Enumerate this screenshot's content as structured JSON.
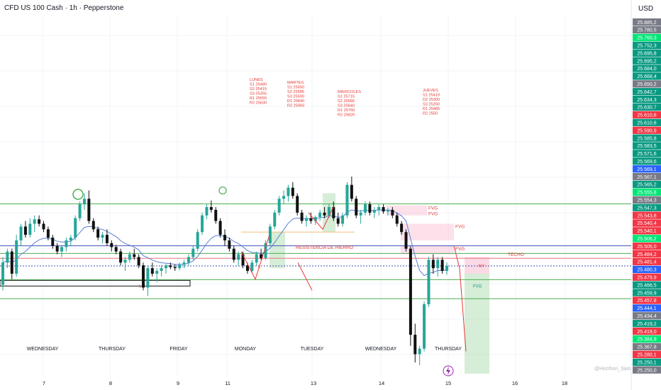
{
  "header": {
    "title": "CFD US 100 Cash · 1h · Pepperstone",
    "currency": "USD",
    "watermark": "@Hezthon_Sam"
  },
  "colors": {
    "up": "#26a69a",
    "down": "#111111",
    "ema": "#5b7fd6",
    "green_line": "#4caf50",
    "red_line": "#e5757a",
    "blue_line": "#3f51b5",
    "annotation": "#e53935"
  },
  "chart_data": {
    "type": "candlestick",
    "instrument": "CFD US 100 Cash",
    "timeframe": "1h",
    "broker": "Pepperstone",
    "ylim": [
      25246,
      25895
    ],
    "day_labels": [
      "WEDNESDAY",
      "THURSDAY",
      "FRIDAY",
      "MONDAY",
      "TUESDAY",
      "WEDNESDAY",
      "THURSDAY"
    ],
    "date_labels": [
      "7",
      "8",
      "9",
      "11",
      "13",
      "14",
      "15",
      "16",
      "18"
    ],
    "price_ticks": [
      {
        "label": "25.885,2",
        "value": 25885.2,
        "bg": "#787b86"
      },
      {
        "label": "25.780,5",
        "value": 25780.5,
        "bg": "#787b86"
      },
      {
        "label": "25.760,3",
        "value": 25760.3,
        "bg": "#00e676"
      },
      {
        "label": "25.752,3",
        "value": 25752.3,
        "bg": "#089981"
      },
      {
        "label": "25.695,8",
        "value": 25695.8,
        "bg": "#089981"
      },
      {
        "label": "25.695,2",
        "value": 25695.2,
        "bg": "#089981"
      },
      {
        "label": "25.684,0",
        "value": 25684.0,
        "bg": "#089981"
      },
      {
        "label": "25.668,4",
        "value": 25668.4,
        "bg": "#089981"
      },
      {
        "label": "25.650,2",
        "value": 25650.2,
        "bg": "#787b86"
      },
      {
        "label": "25.642,7",
        "value": 25642.7,
        "bg": "#089981"
      },
      {
        "label": "25.634,3",
        "value": 25634.3,
        "bg": "#089981"
      },
      {
        "label": "25.630,7",
        "value": 25630.7,
        "bg": "#089981"
      },
      {
        "label": "25.610,6",
        "value": 25610.6,
        "bg": "#f23645"
      },
      {
        "label": "25.610,6",
        "value": 25610.6,
        "bg": "#089981"
      },
      {
        "label": "25.590,9",
        "value": 25590.9,
        "bg": "#f23645"
      },
      {
        "label": "25.585,8",
        "value": 25585.8,
        "bg": "#089981"
      },
      {
        "label": "25.583,5",
        "value": 25583.5,
        "bg": "#089981"
      },
      {
        "label": "25.571,6",
        "value": 25571.6,
        "bg": "#089981"
      },
      {
        "label": "25.569,6",
        "value": 25569.6,
        "bg": "#089981"
      },
      {
        "label": "25.569,1",
        "value": 25569.1,
        "bg": "#2962ff"
      },
      {
        "label": "25.567,1",
        "value": 25567.1,
        "bg": "#787b86"
      },
      {
        "label": "25.565,2",
        "value": 25565.2,
        "bg": "#089981"
      },
      {
        "label": "25.555,8",
        "value": 25555.8,
        "bg": "#00e676"
      },
      {
        "label": "25.554,3",
        "value": 25554.3,
        "bg": "#787b86"
      },
      {
        "label": "25.547,3",
        "value": 25547.3,
        "bg": "#089981"
      },
      {
        "label": "25.543,8",
        "value": 25543.8,
        "bg": "#f23645"
      },
      {
        "label": "25.540,4",
        "value": 25540.4,
        "bg": "#f23645"
      },
      {
        "label": "25.540,1",
        "value": 25540.1,
        "bg": "#f23645"
      },
      {
        "label": "25.506,2",
        "value": 25506.2,
        "bg": "#00e676"
      },
      {
        "label": "25.505,0",
        "value": 25505.0,
        "bg": "#f23645"
      },
      {
        "label": "25.484,2",
        "value": 25484.2,
        "bg": "#f23645"
      },
      {
        "label": "25.481,4",
        "value": 25481.4,
        "bg": "#f23645"
      },
      {
        "label": "25.480,3",
        "value": 25480.3,
        "bg": "#2962ff"
      },
      {
        "label": "25.479,9",
        "value": 25479.9,
        "bg": "#f23645"
      },
      {
        "label": "25.466,5",
        "value": 25466.5,
        "bg": "#089981"
      },
      {
        "label": "25.459,9",
        "value": 25459.9,
        "bg": "#089981"
      },
      {
        "label": "25.457,8",
        "value": 25457.8,
        "bg": "#f23645"
      },
      {
        "label": "25.444,1",
        "value": 25444.1,
        "bg": "#2962ff",
        "sub": "33:08"
      },
      {
        "label": "25.434,4",
        "value": 25434.4,
        "bg": "#787b86"
      },
      {
        "label": "25.419,2",
        "value": 25419.2,
        "bg": "#089981"
      },
      {
        "label": "25.419,0",
        "value": 25419.0,
        "bg": "#f23645"
      },
      {
        "label": "25.384,9",
        "value": 25384.9,
        "bg": "#00e676"
      },
      {
        "label": "25.367,8",
        "value": 25367.8,
        "bg": "#787b86"
      },
      {
        "label": "25.280,1",
        "value": 25280.1,
        "bg": "#f23645"
      },
      {
        "label": "25.250,1",
        "value": 25250.1,
        "bg": "#089981"
      },
      {
        "label": "25.250,0",
        "value": 25250.0,
        "bg": "#787b86"
      }
    ],
    "levels": [
      {
        "value": 25555.8,
        "color": "#4caf50",
        "dashed": false
      },
      {
        "value": 25480.3,
        "color": "#3f51b5",
        "dashed": false
      },
      {
        "value": 25466.5,
        "color": "#4caf50",
        "dashed": false
      },
      {
        "value": 25419.2,
        "color": "#4caf50",
        "dashed": false
      },
      {
        "value": 25505.0,
        "color": "#f4c07a",
        "dashed": false
      },
      {
        "value": 25457.8,
        "color": "#e5757a",
        "dashed": false
      },
      {
        "value": 25444.1,
        "color": "#3f51b5",
        "dashed": true
      },
      {
        "value": 25384.9,
        "color": "#4caf50",
        "dashed": false
      }
    ],
    "fvg_zones": [
      {
        "label": "FVG",
        "top": 25553,
        "bottom": 25543
      },
      {
        "label": "FVG",
        "top": 25543,
        "bottom": 25535
      },
      {
        "label": "FVG",
        "top": 25520,
        "bottom": 25490
      },
      {
        "label": "FVG",
        "top": 25480,
        "bottom": 25465
      }
    ],
    "annotations": {
      "lunes": [
        "LUNES",
        "S1 25480",
        "S2 25419",
        "S3 25355",
        "R1 25555",
        "R2 25630"
      ],
      "martes": [
        "MARTES",
        "S1 25650",
        "S2 25585",
        "S3 25500",
        "R1 25840",
        "R2 25950"
      ],
      "miercoles": [
        "MIERCOLES",
        "S1 25715",
        "S2 25680",
        "S3 25640",
        "R1 25760",
        "R2 25820"
      ],
      "jueves": [
        "JUEVES",
        "S1 25419",
        "D2 25300",
        "S3 25250",
        "R1 25485",
        "R2 2550"
      ],
      "resistencia": "RESISTENCIA DE HIERRO",
      "techo": "TECHO",
      "ny": "NY",
      "fvg_green": "FVG",
      "low_marker_1": "L",
      "low_marker_2": "L",
      "low_marker_3": "L"
    },
    "candles": [
      [
        25410,
        25460,
        25400,
        25450
      ],
      [
        25450,
        25475,
        25440,
        25470
      ],
      [
        25470,
        25475,
        25420,
        25430
      ],
      [
        25430,
        25500,
        25425,
        25490
      ],
      [
        25490,
        25520,
        25480,
        25515
      ],
      [
        25515,
        25525,
        25495,
        25500
      ],
      [
        25500,
        25530,
        25495,
        25520
      ],
      [
        25520,
        25535,
        25505,
        25528
      ],
      [
        25528,
        25535,
        25515,
        25520
      ],
      [
        25520,
        25525,
        25505,
        25510
      ],
      [
        25510,
        25515,
        25490,
        25495
      ],
      [
        25495,
        25500,
        25475,
        25480
      ],
      [
        25480,
        25485,
        25465,
        25470
      ],
      [
        25470,
        25480,
        25460,
        25478
      ],
      [
        25478,
        25495,
        25470,
        25490
      ],
      [
        25490,
        25500,
        25480,
        25495
      ],
      [
        25495,
        25535,
        25490,
        25530
      ],
      [
        25530,
        25560,
        25525,
        25555
      ],
      [
        25555,
        25575,
        25545,
        25565
      ],
      [
        25565,
        25580,
        25520,
        25525
      ],
      [
        25525,
        25530,
        25505,
        25510
      ],
      [
        25510,
        25515,
        25490,
        25495
      ],
      [
        25495,
        25505,
        25485,
        25500
      ],
      [
        25500,
        25510,
        25480,
        25485
      ],
      [
        25485,
        25490,
        25470,
        25478
      ],
      [
        25478,
        25482,
        25465,
        25470
      ],
      [
        25470,
        25475,
        25445,
        25450
      ],
      [
        25450,
        25460,
        25435,
        25455
      ],
      [
        25455,
        25470,
        25450,
        25465
      ],
      [
        25465,
        25475,
        25455,
        25460
      ],
      [
        25460,
        25465,
        25440,
        25445
      ],
      [
        25445,
        25450,
        25400,
        25405
      ],
      [
        25405,
        25445,
        25390,
        25440
      ],
      [
        25440,
        25450,
        25425,
        25430
      ],
      [
        25430,
        25440,
        25415,
        25435
      ],
      [
        25435,
        25445,
        25425,
        25440
      ],
      [
        25440,
        25448,
        25430,
        25445
      ],
      [
        25445,
        25450,
        25438,
        25442
      ],
      [
        25442,
        25447,
        25435,
        25440
      ],
      [
        25440,
        25450,
        25436,
        25446
      ],
      [
        25446,
        25455,
        25440,
        25450
      ],
      [
        25450,
        25465,
        25445,
        25460
      ],
      [
        25460,
        25480,
        25455,
        25475
      ],
      [
        25475,
        25510,
        25470,
        25505
      ],
      [
        25505,
        25540,
        25500,
        25535
      ],
      [
        25535,
        25555,
        25528,
        25550
      ],
      [
        25550,
        25562,
        25540,
        25545
      ],
      [
        25545,
        25550,
        25520,
        25525
      ],
      [
        25525,
        25530,
        25495,
        25500
      ],
      [
        25500,
        25510,
        25480,
        25490
      ],
      [
        25490,
        25495,
        25470,
        25475
      ],
      [
        25475,
        25480,
        25450,
        25455
      ],
      [
        25455,
        25470,
        25445,
        25465
      ],
      [
        25465,
        25470,
        25440,
        25445
      ],
      [
        25445,
        25450,
        25430,
        25435
      ],
      [
        25435,
        25455,
        25432,
        25450
      ],
      [
        25450,
        25470,
        25445,
        25465
      ],
      [
        25465,
        25475,
        25455,
        25458
      ],
      [
        25458,
        25490,
        25455,
        25485
      ],
      [
        25485,
        25520,
        25480,
        25515
      ],
      [
        25515,
        25545,
        25510,
        25540
      ],
      [
        25540,
        25570,
        25535,
        25565
      ],
      [
        25565,
        25580,
        25555,
        25570
      ],
      [
        25570,
        25590,
        25560,
        25585
      ],
      [
        25585,
        25595,
        25565,
        25570
      ],
      [
        25570,
        25575,
        25535,
        25540
      ],
      [
        25540,
        25545,
        25520,
        25525
      ],
      [
        25525,
        25535,
        25515,
        25530
      ],
      [
        25530,
        25540,
        25520,
        25525
      ],
      [
        25525,
        25535,
        25518,
        25532
      ],
      [
        25532,
        25545,
        25525,
        25540
      ],
      [
        25540,
        25550,
        25530,
        25535
      ],
      [
        25535,
        25555,
        25530,
        25550
      ],
      [
        25550,
        25560,
        25525,
        25530
      ],
      [
        25530,
        25540,
        25515,
        25520
      ],
      [
        25520,
        25540,
        25515,
        25535
      ],
      [
        25535,
        25595,
        25530,
        25590
      ],
      [
        25590,
        25605,
        25560,
        25565
      ],
      [
        25565,
        25570,
        25530,
        25535
      ],
      [
        25535,
        25545,
        25520,
        25540
      ],
      [
        25540,
        25560,
        25535,
        25555
      ],
      [
        25555,
        25560,
        25535,
        25540
      ],
      [
        25540,
        25550,
        25530,
        25545
      ],
      [
        25545,
        25555,
        25535,
        25550
      ],
      [
        25550,
        25555,
        25538,
        25542
      ],
      [
        25542,
        25548,
        25535,
        25545
      ],
      [
        25545,
        25550,
        25530,
        25535
      ],
      [
        25535,
        25540,
        25515,
        25520
      ],
      [
        25520,
        25525,
        25500,
        25505
      ],
      [
        25505,
        25510,
        25470,
        25475
      ],
      [
        25475,
        25480,
        25300,
        25320
      ],
      [
        25320,
        25340,
        25270,
        25285
      ],
      [
        25285,
        25300,
        25265,
        25295
      ],
      [
        25295,
        25380,
        25290,
        25375
      ],
      [
        25375,
        25460,
        25370,
        25455
      ],
      [
        25455,
        25465,
        25430,
        25440
      ],
      [
        25440,
        25460,
        25425,
        25455
      ],
      [
        25455,
        25460,
        25430,
        25435
      ],
      [
        25435,
        25450,
        25428,
        25444
      ]
    ]
  }
}
